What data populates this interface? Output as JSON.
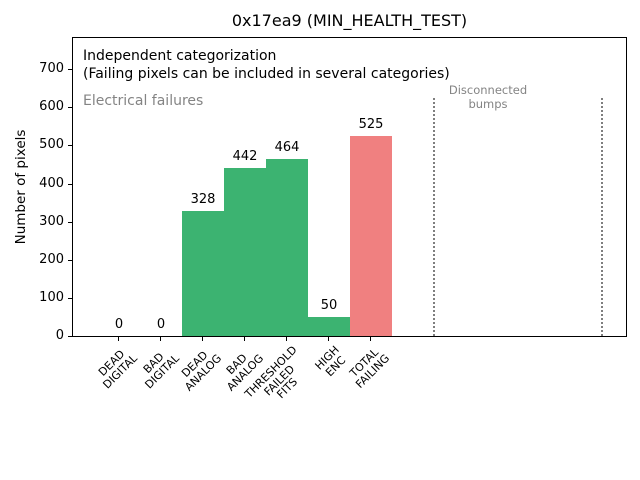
{
  "chart_data": {
    "type": "bar",
    "title": "0x17ea9 (MIN_HEALTH_TEST)",
    "ylabel": "Number of pixels",
    "xlabel": "",
    "categories": [
      "DEAD\nDIGITAL",
      "BAD\nDIGITAL",
      "DEAD\nANALOG",
      "BAD\nANALOG",
      "THRESHOLD\nFAILED\nFITS",
      "HIGH\nENC",
      "TOTAL\nFAILING"
    ],
    "values": [
      0,
      0,
      328,
      442,
      464,
      50,
      525
    ],
    "bar_colors": [
      "#3cb371",
      "#3cb371",
      "#3cb371",
      "#3cb371",
      "#3cb371",
      "#3cb371",
      "#f08080"
    ],
    "yticks": [
      0,
      100,
      200,
      300,
      400,
      500,
      600,
      700
    ],
    "ylim": [
      0,
      787
    ],
    "grid": false,
    "legend": null,
    "annotations": {
      "categorization": "Independent categorization\n(Failing pixels can be included in several categories)",
      "electrical": "Electrical failures",
      "disconnected": "Disconnected\nbumps"
    },
    "vlines_category_x": [
      7.48,
      11.48
    ],
    "colors": {
      "bar_green": "#3cb371",
      "bar_red": "#f08080",
      "annotation_gray": "#848484",
      "vline_gray": "#7f7f7f"
    }
  }
}
